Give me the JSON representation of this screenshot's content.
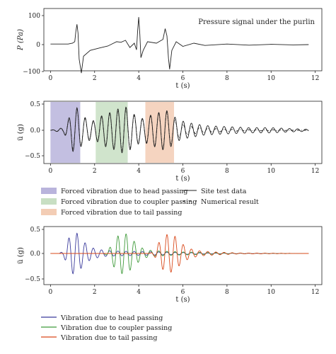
{
  "chart_data": [
    {
      "type": "line",
      "annotation": "Pressure signal under the purlin",
      "xlabel": "t (s)",
      "ylabel": "P (Pa)",
      "xlim": [
        -0.3,
        12.3
      ],
      "ylim": [
        -100,
        100
      ],
      "xticks": [
        "0",
        "2",
        "4",
        "6",
        "8",
        "10",
        "12"
      ],
      "yticks": [
        "100",
        "0",
        "−100"
      ],
      "grid": false,
      "series": [
        {
          "color": "#222222",
          "x": [
            0,
            0.8,
            1.0,
            1.1,
            1.15,
            1.2,
            1.25,
            1.3,
            1.4,
            1.5,
            1.8,
            2.2,
            2.6,
            3.0,
            3.2,
            3.4,
            3.6,
            3.8,
            3.9,
            3.95,
            4.0,
            4.05,
            4.1,
            4.2,
            4.4,
            4.8,
            5.1,
            5.2,
            5.28,
            5.35,
            5.4,
            5.5,
            5.7,
            6.0,
            6.5,
            7.0,
            8.0,
            9.0,
            10.0,
            11.0,
            11.7
          ],
          "y": [
            2,
            2,
            5,
            10,
            45,
            70,
            40,
            -50,
            -98,
            -40,
            -20,
            -12,
            -5,
            10,
            8,
            15,
            -10,
            5,
            -18,
            48,
            95,
            35,
            -45,
            -20,
            10,
            5,
            18,
            55,
            30,
            -48,
            -85,
            -20,
            10,
            -6,
            5,
            -3,
            2,
            -2,
            1,
            -1,
            0
          ]
        }
      ]
    },
    {
      "type": "line",
      "xlabel": "t (s)",
      "ylabel": "ü (g)",
      "xlim": [
        -0.3,
        12.3
      ],
      "ylim": [
        -0.6,
        0.6
      ],
      "xticks": [
        "0",
        "2",
        "4",
        "6",
        "8",
        "10",
        "12"
      ],
      "yticks": [
        "0.5",
        "0.0",
        "−0.5"
      ],
      "grid": false,
      "shaded_regions": [
        {
          "x": [
            0,
            1.35
          ],
          "color": "#b9b4dc",
          "label": "Forced vibration due to head passing"
        },
        {
          "x": [
            2.05,
            3.5
          ],
          "color": "#c8dfc3",
          "label": "Forced vibration due to coupler passing"
        },
        {
          "x": [
            4.3,
            5.6
          ],
          "color": "#f3cdb5",
          "label": "Forced vibration due to tail passing"
        }
      ],
      "series": [
        {
          "name": "Site test data",
          "style": "solid",
          "color": "#222222",
          "x": [
            0,
            0.6,
            0.8,
            1.0,
            1.2,
            1.4,
            1.7,
            2.0,
            2.4,
            2.8,
            3.0,
            3.4,
            3.8,
            4.2,
            4.6,
            5.0,
            5.2,
            5.4,
            5.8,
            6.2,
            7.0,
            8.0,
            9.0,
            10.0,
            11.0,
            11.7
          ],
          "amplitude": [
            0,
            0.05,
            0.2,
            0.4,
            0.43,
            0.3,
            0.2,
            0.18,
            0.3,
            0.35,
            0.4,
            0.45,
            0.3,
            0.22,
            0.3,
            0.35,
            0.4,
            0.33,
            0.2,
            0.15,
            0.09,
            0.07,
            0.05,
            0.05,
            0.03,
            0.02
          ],
          "frequency_hz": 2.7
        },
        {
          "name": "Numerical result",
          "style": "dash-dot",
          "color": "#222222",
          "x": [
            0,
            0.6,
            0.8,
            1.0,
            1.2,
            1.4,
            1.7,
            2.0,
            2.4,
            2.8,
            3.0,
            3.4,
            3.8,
            4.2,
            4.6,
            5.0,
            5.2,
            5.4,
            5.8,
            6.2,
            7.0,
            8.0,
            9.0,
            10.0,
            11.0,
            11.7
          ],
          "amplitude": [
            0,
            0.04,
            0.18,
            0.36,
            0.42,
            0.28,
            0.18,
            0.16,
            0.28,
            0.33,
            0.37,
            0.42,
            0.28,
            0.2,
            0.28,
            0.33,
            0.37,
            0.3,
            0.15,
            0.08,
            0.04,
            0.02,
            0.01,
            0.01,
            0.0,
            0.0
          ],
          "frequency_hz": 2.7
        }
      ]
    },
    {
      "type": "line",
      "xlabel": "t (s)",
      "ylabel": "ü (g)",
      "xlim": [
        -0.3,
        12.3
      ],
      "ylim": [
        -0.6,
        0.6
      ],
      "xticks": [
        "0",
        "2",
        "4",
        "6",
        "8",
        "10",
        "12"
      ],
      "yticks": [
        "0.5",
        "0.0",
        "−0.5"
      ],
      "grid": false,
      "series": [
        {
          "name": "Vibration due to head passing",
          "color": "#3b3b9c",
          "x": [
            0,
            0.4,
            0.6,
            0.8,
            1.0,
            1.2,
            1.4,
            1.7,
            2.0,
            2.5,
            3.0,
            4.0,
            5.0,
            6.0,
            7.0,
            8.0,
            11.7
          ],
          "amplitude": [
            0,
            0,
            0.06,
            0.3,
            0.42,
            0.42,
            0.3,
            0.16,
            0.1,
            0.06,
            0.05,
            0.04,
            0.03,
            0.02,
            0.01,
            0.005,
            0
          ],
          "frequency_hz": 2.7
        },
        {
          "name": "Vibration due to coupler passing",
          "color": "#3f9a3a",
          "x": [
            0,
            2.4,
            2.6,
            2.9,
            3.2,
            3.5,
            3.8,
            4.2,
            4.6,
            5.0,
            6.0,
            7.0,
            8.0,
            11.7
          ],
          "amplitude": [
            0,
            0,
            0.05,
            0.3,
            0.42,
            0.4,
            0.25,
            0.1,
            0.06,
            0.05,
            0.03,
            0.02,
            0.01,
            0
          ],
          "frequency_hz": 2.7
        },
        {
          "name": "Vibration due to tail passing",
          "color": "#d9481a",
          "x": [
            0,
            4.5,
            4.7,
            5.0,
            5.3,
            5.6,
            5.9,
            6.3,
            6.8,
            7.5,
            8.5,
            11.7
          ],
          "amplitude": [
            0,
            0,
            0.05,
            0.3,
            0.4,
            0.38,
            0.22,
            0.1,
            0.05,
            0.03,
            0.01,
            0
          ],
          "frequency_hz": 2.7
        }
      ]
    }
  ],
  "legends": {
    "middle_bands": [
      {
        "label": "Forced vibration due to head passing",
        "color": "#b9b4dc"
      },
      {
        "label": "Forced vibration due to coupler passing",
        "color": "#c8dfc3"
      },
      {
        "label": "Forced vibration due to tail passing",
        "color": "#f3cdb5"
      }
    ],
    "middle_lines": [
      {
        "label": "Site test data",
        "style": "solid"
      },
      {
        "label": "Numerical result",
        "style": "dash-dot"
      }
    ],
    "bottom_lines": [
      {
        "label": "Vibration due to head passing",
        "color": "#3b3b9c"
      },
      {
        "label": "Vibration due to coupler passing",
        "color": "#3f9a3a"
      },
      {
        "label": "Vibration due to tail passing",
        "color": "#d9481a"
      }
    ]
  }
}
